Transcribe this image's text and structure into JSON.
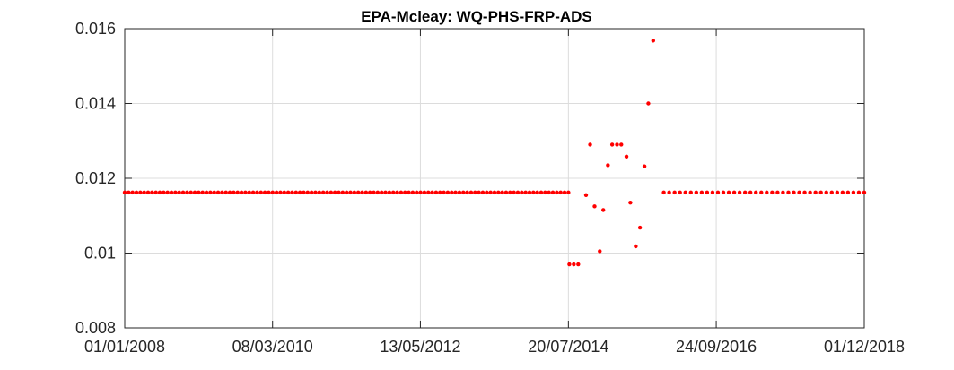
{
  "chart_data": {
    "type": "scatter",
    "title": "EPA-Mcleay: WQ-PHS-FRP-ADS",
    "xlabel": "",
    "ylabel": "",
    "x_ticks": [
      "01/01/2008",
      "08/03/2010",
      "13/05/2012",
      "20/07/2014",
      "24/09/2016",
      "01/12/2018"
    ],
    "xlim": [
      "01/01/2008",
      "01/12/2018"
    ],
    "y_ticks": [
      "0.008",
      "0.01",
      "0.012",
      "0.014",
      "0.016"
    ],
    "ylim": [
      0.008,
      0.016
    ],
    "grid": true,
    "marker_color": "#ff0000",
    "series": [
      {
        "constant_segments": [
          {
            "x_start": "01/01/2008",
            "x_end": "20/07/2014",
            "y": 0.01162,
            "count": 115
          },
          {
            "x_start": "16/12/2015",
            "x_end": "01/12/2018",
            "y": 0.01162,
            "count": 38
          }
        ],
        "points": [
          {
            "x": "25/07/2014",
            "y": 0.0097
          },
          {
            "x": "18/08/2014",
            "y": 0.0097
          },
          {
            "x": "11/09/2014",
            "y": 0.0097
          },
          {
            "x": "23/10/2014",
            "y": 0.01155
          },
          {
            "x": "14/11/2014",
            "y": 0.0129
          },
          {
            "x": "08/12/2014",
            "y": 0.01125
          },
          {
            "x": "05/01/2015",
            "y": 0.01005
          },
          {
            "x": "24/01/2015",
            "y": 0.01115
          },
          {
            "x": "18/02/2015",
            "y": 0.01235
          },
          {
            "x": "13/03/2015",
            "y": 0.0129
          },
          {
            "x": "08/04/2015",
            "y": 0.0129
          },
          {
            "x": "01/05/2015",
            "y": 0.0129
          },
          {
            "x": "29/05/2015",
            "y": 0.01258
          },
          {
            "x": "19/06/2015",
            "y": 0.01135
          },
          {
            "x": "18/07/2015",
            "y": 0.01018
          },
          {
            "x": "10/08/2015",
            "y": 0.01068
          },
          {
            "x": "03/09/2015",
            "y": 0.01232
          },
          {
            "x": "24/09/2015",
            "y": 0.014
          },
          {
            "x": "20/10/2015",
            "y": 0.01568
          }
        ]
      }
    ]
  }
}
